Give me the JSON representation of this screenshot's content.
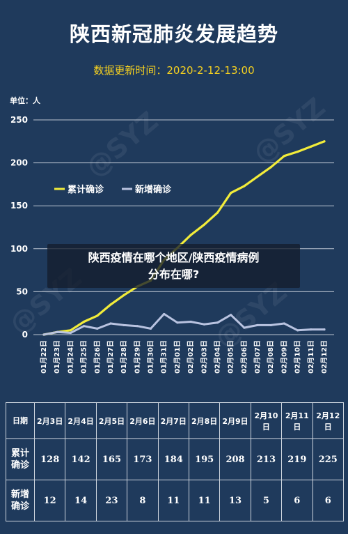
{
  "title": "陕西新冠肺炎发展趋势",
  "subtitle": "数据更新时间：2020-2-12-13:00",
  "unit_label": "单位：人",
  "overlay": {
    "line1": "陕西疫情在哪个地区/陕西疫情病例",
    "line2": "分布在哪?"
  },
  "watermark": "@SYZ",
  "colors": {
    "background": "#1f3a5c",
    "cumulative": "#f2ec3a",
    "new": "#b9c3e0",
    "grid": "#d7dde6"
  },
  "chart_data": {
    "type": "line",
    "title": "陕西新冠肺炎发展趋势",
    "x": [
      "01月22日",
      "01月23日",
      "01月24日",
      "01月25日",
      "01月26日",
      "01月27日",
      "01月28日",
      "01月29日",
      "01月30日",
      "01月31日",
      "02月01日",
      "02月02日",
      "02月03日",
      "02月04日",
      "02月05日",
      "02月06日",
      "02月07日",
      "02月08日",
      "02月09日",
      "02月10日",
      "02月11日",
      "02月12日"
    ],
    "yticks": [
      0,
      50,
      100,
      150,
      200,
      250
    ],
    "ylim": [
      0,
      250
    ],
    "grid": true,
    "legend_position": "top-left",
    "series": [
      {
        "name": "累计确诊",
        "values": [
          0,
          3,
          5,
          15,
          22,
          35,
          46,
          56,
          63,
          87,
          101,
          116,
          128,
          142,
          165,
          173,
          184,
          195,
          208,
          213,
          219,
          225
        ]
      },
      {
        "name": "新增确诊",
        "values": [
          0,
          3,
          2,
          10,
          7,
          13,
          11,
          10,
          7,
          24,
          14,
          15,
          12,
          14,
          23,
          8,
          11,
          11,
          13,
          5,
          6,
          6
        ]
      }
    ]
  },
  "table": {
    "headers": [
      "日期",
      "累计确诊",
      "新增确诊"
    ],
    "dates": [
      "2月3日",
      "2月4日",
      "2月5日",
      "2月6日",
      "2月7日",
      "2月8日",
      "2月9日",
      "2月10日",
      "2月11日",
      "2月12日"
    ],
    "cumulative": [
      "128",
      "142",
      "165",
      "173",
      "184",
      "195",
      "208",
      "213",
      "219",
      "225"
    ],
    "new": [
      "12",
      "14",
      "23",
      "8",
      "11",
      "11",
      "13",
      "5",
      "6",
      "6"
    ]
  }
}
